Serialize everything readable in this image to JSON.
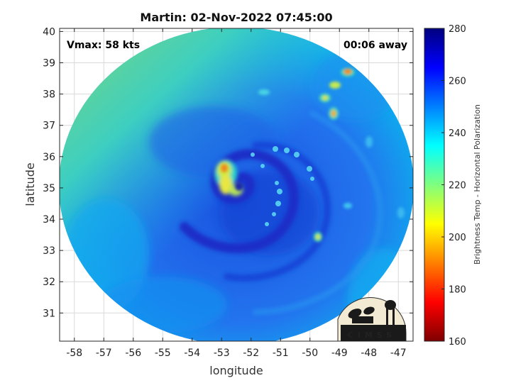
{
  "chart_data": {
    "type": "heatmap",
    "title": "Martin: 02-Nov-2022 07:45:00",
    "xlabel": "longitude",
    "ylabel": "latitude",
    "xlim": [
      -58.5,
      -46.5
    ],
    "ylim": [
      30.1,
      40.1
    ],
    "x_ticks": [
      -58,
      -57,
      -56,
      -55,
      -54,
      -53,
      -52,
      -51,
      -50,
      -49,
      -48,
      -47
    ],
    "y_ticks": [
      31,
      32,
      33,
      34,
      35,
      36,
      37,
      38,
      39,
      40
    ],
    "grid": true,
    "annotations": {
      "vmax": "Vmax: 58 kts",
      "time_offset": "00:06 away"
    },
    "colorbar": {
      "label": "Brightness Temp - Horizontal Polarization",
      "range": [
        160,
        280
      ],
      "ticks": [
        160,
        180,
        200,
        220,
        240,
        260,
        280
      ],
      "colormap": "jet"
    },
    "storm_center": {
      "lon": -52.2,
      "lat": 35.3
    },
    "features": {
      "warm_eyewall_max": {
        "lon": -53.0,
        "lat": 35.6,
        "value": 185
      },
      "outer_cells": [
        {
          "lon": -48.7,
          "lat": 38.7,
          "value": 190
        },
        {
          "lon": -48.9,
          "lat": 38.3,
          "value": 205
        },
        {
          "lon": -49.3,
          "lat": 37.85,
          "value": 205
        },
        {
          "lon": -49.2,
          "lat": 37.3,
          "value": 200
        },
        {
          "lon": -49.7,
          "lat": 33.35,
          "value": 215
        }
      ]
    },
    "logo": "CIMSS"
  }
}
